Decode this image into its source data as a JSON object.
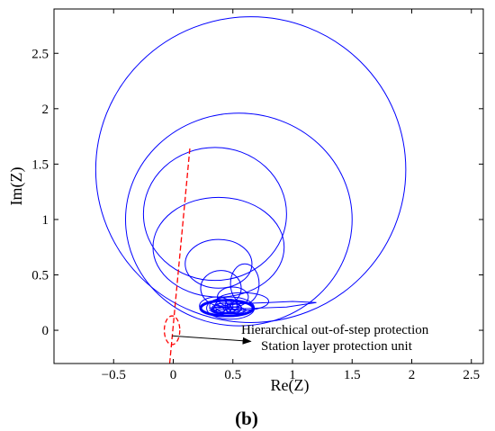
{
  "chart_data": {
    "type": "line",
    "xlabel": "Re(Z)",
    "ylabel": "Im(Z)",
    "xlim": [
      -1.0,
      2.6
    ],
    "ylim": [
      -0.3,
      2.9
    ],
    "xticks": [
      -0.5,
      0,
      0.5,
      1,
      1.5,
      2,
      2.5
    ],
    "yticks": [
      0,
      0.5,
      1,
      1.5,
      2,
      2.5
    ],
    "grid": false,
    "legend": "none",
    "colors": {
      "trajectory": "#0000ff",
      "protection": "#ff0000"
    },
    "loops": [
      {
        "cx": 0.65,
        "cy": 1.45,
        "rx": 1.3,
        "ry": 1.38
      },
      {
        "cx": 0.55,
        "cy": 1.0,
        "rx": 0.95,
        "ry": 0.96
      },
      {
        "cx": 0.35,
        "cy": 1.05,
        "rx": 0.6,
        "ry": 0.6
      },
      {
        "cx": 0.38,
        "cy": 0.75,
        "rx": 0.55,
        "ry": 0.45
      },
      {
        "cx": 0.38,
        "cy": 0.6,
        "rx": 0.28,
        "ry": 0.22
      },
      {
        "cx": 0.6,
        "cy": 0.42,
        "rx": 0.12,
        "ry": 0.18
      },
      {
        "cx": 0.4,
        "cy": 0.38,
        "rx": 0.17,
        "ry": 0.16
      },
      {
        "cx": 0.5,
        "cy": 0.3,
        "rx": 0.13,
        "ry": 0.09
      },
      {
        "cx": 0.58,
        "cy": 0.26,
        "rx": 0.22,
        "ry": 0.08
      },
      {
        "cx": 0.36,
        "cy": 0.22,
        "rx": 0.14,
        "ry": 0.08
      },
      {
        "cx": 0.48,
        "cy": 0.2,
        "rx": 0.2,
        "ry": 0.1
      }
    ],
    "tail": {
      "x": [
        0.3,
        0.55,
        0.8,
        1.0,
        1.2,
        0.95,
        0.7,
        0.5,
        0.3
      ],
      "y": [
        0.2,
        0.24,
        0.25,
        0.26,
        0.25,
        0.21,
        0.2,
        0.19,
        0.18
      ]
    },
    "core": {
      "cx": 0.45,
      "cy": 0.2,
      "rx": 0.22,
      "ry": 0.07
    },
    "protection_line": {
      "x": [
        -0.03,
        0.14
      ],
      "y": [
        -0.3,
        1.65
      ]
    },
    "protection_oval": {
      "cx": -0.01,
      "cy": 0.0,
      "rx": 0.065,
      "ry": 0.13
    },
    "arrow": {
      "from": [
        -0.01,
        -0.05
      ],
      "to": [
        0.65,
        -0.1
      ]
    },
    "annotations": {
      "line1": "Hierarchical out-of-step protection",
      "line2": "Station layer protection unit"
    }
  },
  "panel_label": {
    "open": "(",
    "letter": "b",
    "close": ")"
  }
}
